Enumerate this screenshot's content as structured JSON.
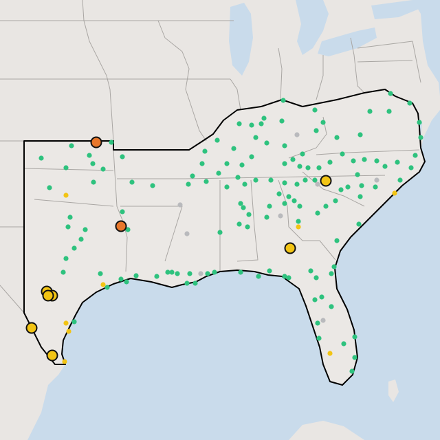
{
  "map": {
    "colors": {
      "water": "#c9dbeb",
      "land": "#e9e6e3",
      "region_fill": "#ebe8e5",
      "border": "#a9a6a3",
      "region_outline": "#000000",
      "green": "#2ec27e",
      "gray": "#b9babd",
      "yellow": "#f2c414",
      "orange": "#e8772b"
    },
    "legend_levels": [
      "green",
      "gray",
      "yellow",
      "orange"
    ]
  }
}
